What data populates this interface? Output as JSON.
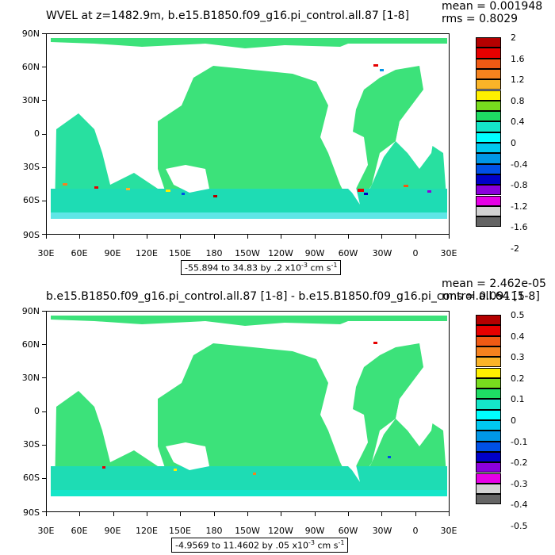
{
  "panels": [
    {
      "title": "WVEL at z=1482.9m, b.e15.B1850.f09_g16.pi_control.all.87 [1-8]",
      "mean": "mean = 0.001948",
      "rms": "rms = 0.8029",
      "range_text": "-55.894 to 34.83 by .2 x10",
      "range_exp": "-3",
      "range_unit": " cm s",
      "range_unit_exp": "-1",
      "colorbar_labels": [
        "2",
        "1.6",
        "1.2",
        "0.8",
        "0.4",
        "0",
        "-0.4",
        "-0.8",
        "-1.2",
        "-1.6",
        "-2"
      ]
    },
    {
      "title": "b.e15.B1850.f09_g16.pi_control.all.87 [1-8] - b.e15.B1850.f09_g16.pi_control.all.64 [1-8]",
      "mean": "mean = 2.462e-05",
      "rms": "rms = 0.09115",
      "range_text": "-4.9569 to 11.4602 by .05 x10",
      "range_exp": "-3",
      "range_unit": " cm s",
      "range_unit_exp": "-1",
      "colorbar_labels": [
        "0.5",
        "0.4",
        "0.3",
        "0.2",
        "0.1",
        "0",
        "-0.1",
        "-0.2",
        "-0.3",
        "-0.4",
        "-0.5"
      ]
    }
  ],
  "axes": {
    "lat_labels": [
      "90N",
      "60N",
      "30N",
      "0",
      "30S",
      "60S",
      "90S"
    ],
    "lon_labels": [
      "30E",
      "60E",
      "90E",
      "120E",
      "150E",
      "180",
      "150W",
      "120W",
      "90W",
      "60W",
      "30W",
      "0",
      "30E"
    ]
  },
  "colorbar_colors": [
    "#b40000",
    "#e60000",
    "#f05a14",
    "#f5821e",
    "#fab428",
    "#fff000",
    "#78dc1e",
    "#1edc64",
    "#14e6c8",
    "#00ffff",
    "#00c8f0",
    "#0096e6",
    "#0050e6",
    "#0000c8",
    "#8c00dc",
    "#e600e6",
    "#d2d2d2",
    "#646464"
  ]
}
